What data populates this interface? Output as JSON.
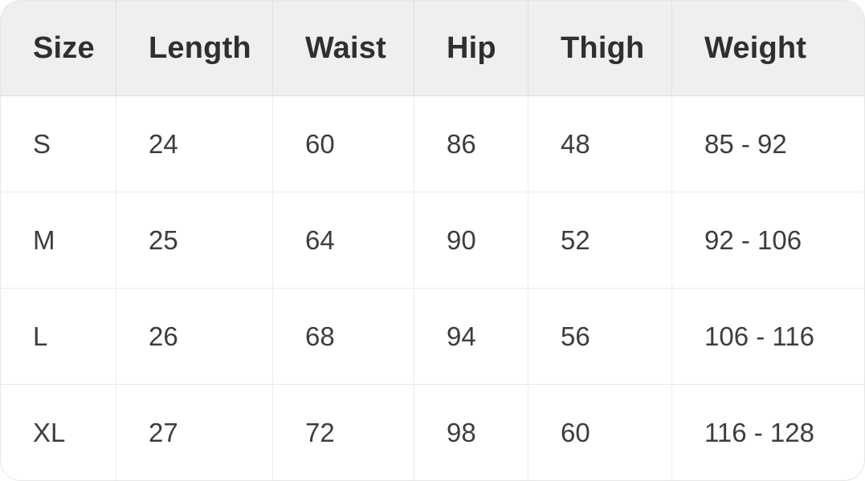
{
  "table": {
    "headers": [
      "Size",
      "Length",
      "Waist",
      "Hip",
      "Thigh",
      "Weight"
    ],
    "rows": [
      {
        "cells": [
          "S",
          "24",
          "60",
          "86",
          "48",
          "85 - 92"
        ]
      },
      {
        "cells": [
          "M",
          "25",
          "64",
          "90",
          "52",
          "92 - 106"
        ]
      },
      {
        "cells": [
          "L",
          "26",
          "68",
          "94",
          "56",
          "106 - 116"
        ]
      },
      {
        "cells": [
          "XL",
          "27",
          "72",
          "98",
          "60",
          "116 - 128"
        ]
      }
    ]
  },
  "colors": {
    "header_background": "#efefef",
    "body_background": "#ffffff",
    "grid_line": "#e5e5e5",
    "header_text": "#2f2f2f",
    "body_text": "#3d3d3d"
  },
  "chart_data": {
    "type": "table",
    "columns": [
      "Size",
      "Length",
      "Waist",
      "Hip",
      "Thigh",
      "Weight"
    ],
    "rows": [
      [
        "S",
        24,
        60,
        86,
        48,
        "85 - 92"
      ],
      [
        "M",
        25,
        64,
        90,
        52,
        "92 - 106"
      ],
      [
        "L",
        26,
        68,
        94,
        56,
        "106 - 116"
      ],
      [
        "XL",
        27,
        72,
        98,
        60,
        "116 - 128"
      ]
    ]
  }
}
